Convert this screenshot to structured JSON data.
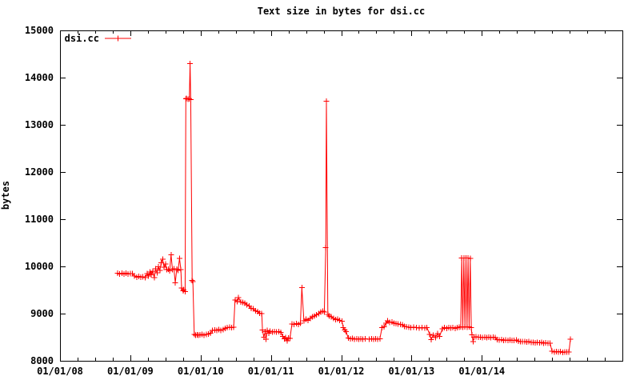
{
  "colors": {
    "series": "#ff0000",
    "text": "#000000",
    "background": "#ffffff",
    "border": "#000000"
  },
  "chart_data": {
    "type": "line",
    "title": "Text size in bytes for dsi.cc",
    "xlabel": "",
    "ylabel": "bytes",
    "legend": {
      "label": "dsi.cc",
      "position": "top-left-inside",
      "marker": "plus"
    },
    "grid": false,
    "x_axis": {
      "range": [
        2008,
        2016
      ],
      "minor_tick_step_years": 0.25,
      "majors": [
        {
          "year": 2008,
          "label": "01/01/08"
        },
        {
          "year": 2009,
          "label": "01/01/09"
        },
        {
          "year": 2010,
          "label": "01/01/10"
        },
        {
          "year": 2011,
          "label": "01/01/11"
        },
        {
          "year": 2012,
          "label": "01/01/12"
        },
        {
          "year": 2013,
          "label": "01/01/13"
        },
        {
          "year": 2014,
          "label": "01/01/14"
        }
      ]
    },
    "y_axis": {
      "range": [
        8000,
        15000
      ],
      "ticks": [
        {
          "value": 8000,
          "label": "8000"
        },
        {
          "value": 9000,
          "label": "9000"
        },
        {
          "value": 10000,
          "label": "10000"
        },
        {
          "value": 11000,
          "label": "11000"
        },
        {
          "value": 12000,
          "label": "12000"
        },
        {
          "value": 13000,
          "label": "13000"
        },
        {
          "value": 14000,
          "label": "14000"
        },
        {
          "value": 15000,
          "label": "15000"
        }
      ]
    },
    "series": [
      {
        "name": "dsi.cc",
        "color": "#ff0000",
        "marker": "plus",
        "points": [
          [
            2008.82,
            9855
          ],
          [
            2008.85,
            9840
          ],
          [
            2008.88,
            9858
          ],
          [
            2008.91,
            9842
          ],
          [
            2008.94,
            9852
          ],
          [
            2008.97,
            9838
          ],
          [
            2009.0,
            9850
          ],
          [
            2009.03,
            9844
          ],
          [
            2009.06,
            9800
          ],
          [
            2009.09,
            9775
          ],
          [
            2009.12,
            9788
          ],
          [
            2009.15,
            9768
          ],
          [
            2009.18,
            9780
          ],
          [
            2009.21,
            9765
          ],
          [
            2009.24,
            9850
          ],
          [
            2009.26,
            9795
          ],
          [
            2009.28,
            9885
          ],
          [
            2009.3,
            9820
          ],
          [
            2009.32,
            9900
          ],
          [
            2009.34,
            9760
          ],
          [
            2009.36,
            9945
          ],
          [
            2009.38,
            9865
          ],
          [
            2009.4,
            9995
          ],
          [
            2009.42,
            9915
          ],
          [
            2009.44,
            10075
          ],
          [
            2009.46,
            10150
          ],
          [
            2009.48,
            9980
          ],
          [
            2009.5,
            10050
          ],
          [
            2009.52,
            9930
          ],
          [
            2009.54,
            9940
          ],
          [
            2009.56,
            9905
          ],
          [
            2009.58,
            10250
          ],
          [
            2009.6,
            9930
          ],
          [
            2009.62,
            9950
          ],
          [
            2009.64,
            9650
          ],
          [
            2009.66,
            9938
          ],
          [
            2009.68,
            9918
          ],
          [
            2009.7,
            10170
          ],
          [
            2009.72,
            9928
          ],
          [
            2009.73,
            9545
          ],
          [
            2009.75,
            9480
          ],
          [
            2009.76,
            9505
          ],
          [
            2009.78,
            9470
          ],
          [
            2009.79,
            13550
          ],
          [
            2009.8,
            13560
          ],
          [
            2009.82,
            13540
          ],
          [
            2009.84,
            13555
          ],
          [
            2009.85,
            14300
          ],
          [
            2009.86,
            13530
          ],
          [
            2009.88,
            9700
          ],
          [
            2009.89,
            9680
          ],
          [
            2009.91,
            8560
          ],
          [
            2009.93,
            8540
          ],
          [
            2009.95,
            8555
          ],
          [
            2009.97,
            8542
          ],
          [
            2009.99,
            8552
          ],
          [
            2010.02,
            8556
          ],
          [
            2010.05,
            8540
          ],
          [
            2010.08,
            8560
          ],
          [
            2010.11,
            8572
          ],
          [
            2010.14,
            8588
          ],
          [
            2010.17,
            8640
          ],
          [
            2010.2,
            8652
          ],
          [
            2010.23,
            8642
          ],
          [
            2010.26,
            8658
          ],
          [
            2010.29,
            8648
          ],
          [
            2010.32,
            8662
          ],
          [
            2010.35,
            8688
          ],
          [
            2010.38,
            8700
          ],
          [
            2010.41,
            8712
          ],
          [
            2010.44,
            8702
          ],
          [
            2010.47,
            8715
          ],
          [
            2010.49,
            9290
          ],
          [
            2010.52,
            9255
          ],
          [
            2010.54,
            9340
          ],
          [
            2010.57,
            9250
          ],
          [
            2010.6,
            9238
          ],
          [
            2010.63,
            9222
          ],
          [
            2010.66,
            9190
          ],
          [
            2010.69,
            9160
          ],
          [
            2010.72,
            9112
          ],
          [
            2010.75,
            9098
          ],
          [
            2010.78,
            9062
          ],
          [
            2010.81,
            9040
          ],
          [
            2010.84,
            9012
          ],
          [
            2010.87,
            9000
          ],
          [
            2010.88,
            8650
          ],
          [
            2010.9,
            8500
          ],
          [
            2010.92,
            8622
          ],
          [
            2010.93,
            8460
          ],
          [
            2010.95,
            8640
          ],
          [
            2010.97,
            8582
          ],
          [
            2010.99,
            8628
          ],
          [
            2011.02,
            8612
          ],
          [
            2011.05,
            8622
          ],
          [
            2011.08,
            8608
          ],
          [
            2011.11,
            8618
          ],
          [
            2011.14,
            8605
          ],
          [
            2011.17,
            8520
          ],
          [
            2011.19,
            8468
          ],
          [
            2011.21,
            8492
          ],
          [
            2011.23,
            8420
          ],
          [
            2011.25,
            8480
          ],
          [
            2011.27,
            8472
          ],
          [
            2011.3,
            8782
          ],
          [
            2011.33,
            8768
          ],
          [
            2011.36,
            8790
          ],
          [
            2011.39,
            8775
          ],
          [
            2011.42,
            8800
          ],
          [
            2011.44,
            9550
          ],
          [
            2011.47,
            8848
          ],
          [
            2011.5,
            8878
          ],
          [
            2011.53,
            8858
          ],
          [
            2011.56,
            8900
          ],
          [
            2011.59,
            8928
          ],
          [
            2011.62,
            8948
          ],
          [
            2011.65,
            8978
          ],
          [
            2011.68,
            9002
          ],
          [
            2011.71,
            9038
          ],
          [
            2011.74,
            9052
          ],
          [
            2011.76,
            9030
          ],
          [
            2011.78,
            10400
          ],
          [
            2011.79,
            13500
          ],
          [
            2011.81,
            8985
          ],
          [
            2011.83,
            8952
          ],
          [
            2011.86,
            8930
          ],
          [
            2011.89,
            8902
          ],
          [
            2011.92,
            8872
          ],
          [
            2011.95,
            8882
          ],
          [
            2011.98,
            8852
          ],
          [
            2012.01,
            8840
          ],
          [
            2012.03,
            8700
          ],
          [
            2012.05,
            8652
          ],
          [
            2012.07,
            8618
          ],
          [
            2012.1,
            8480
          ],
          [
            2012.13,
            8465
          ],
          [
            2012.16,
            8476
          ],
          [
            2012.19,
            8460
          ],
          [
            2012.22,
            8470
          ],
          [
            2012.25,
            8456
          ],
          [
            2012.28,
            8468
          ],
          [
            2012.31,
            8458
          ],
          [
            2012.34,
            8466
          ],
          [
            2012.4,
            8458
          ],
          [
            2012.43,
            8470
          ],
          [
            2012.46,
            8455
          ],
          [
            2012.49,
            8466
          ],
          [
            2012.52,
            8458
          ],
          [
            2012.55,
            8468
          ],
          [
            2012.58,
            8700
          ],
          [
            2012.61,
            8722
          ],
          [
            2012.64,
            8800
          ],
          [
            2012.66,
            8850
          ],
          [
            2012.69,
            8812
          ],
          [
            2012.72,
            8820
          ],
          [
            2012.75,
            8800
          ],
          [
            2012.78,
            8792
          ],
          [
            2012.81,
            8782
          ],
          [
            2012.84,
            8772
          ],
          [
            2012.87,
            8762
          ],
          [
            2012.9,
            8732
          ],
          [
            2012.93,
            8722
          ],
          [
            2012.96,
            8712
          ],
          [
            2012.99,
            8702
          ],
          [
            2013.03,
            8712
          ],
          [
            2013.07,
            8700
          ],
          [
            2013.11,
            8694
          ],
          [
            2013.15,
            8702
          ],
          [
            2013.19,
            8696
          ],
          [
            2013.22,
            8704
          ],
          [
            2013.26,
            8560
          ],
          [
            2013.28,
            8450
          ],
          [
            2013.31,
            8545
          ],
          [
            2013.34,
            8495
          ],
          [
            2013.37,
            8575
          ],
          [
            2013.4,
            8520
          ],
          [
            2013.44,
            8680
          ],
          [
            2013.47,
            8700
          ],
          [
            2013.5,
            8690
          ],
          [
            2013.53,
            8705
          ],
          [
            2013.56,
            8695
          ],
          [
            2013.59,
            8700
          ],
          [
            2013.62,
            8690
          ],
          [
            2013.65,
            8700
          ],
          [
            2013.68,
            8710
          ],
          [
            2013.7,
            8720
          ],
          [
            2013.715,
            10180
          ],
          [
            2013.73,
            8715
          ],
          [
            2013.745,
            10180
          ],
          [
            2013.76,
            8720
          ],
          [
            2013.775,
            10180
          ],
          [
            2013.79,
            8715
          ],
          [
            2013.805,
            10180
          ],
          [
            2013.82,
            8720
          ],
          [
            2013.835,
            10170
          ],
          [
            2013.85,
            8700
          ],
          [
            2013.86,
            8550
          ],
          [
            2013.875,
            8410
          ],
          [
            2013.89,
            8500
          ],
          [
            2013.92,
            8510
          ],
          [
            2013.95,
            8496
          ],
          [
            2013.98,
            8504
          ],
          [
            2014.01,
            8492
          ],
          [
            2014.04,
            8502
          ],
          [
            2014.07,
            8494
          ],
          [
            2014.1,
            8504
          ],
          [
            2014.13,
            8490
          ],
          [
            2014.16,
            8498
          ],
          [
            2014.19,
            8492
          ],
          [
            2014.22,
            8448
          ],
          [
            2014.25,
            8440
          ],
          [
            2014.28,
            8446
          ],
          [
            2014.31,
            8436
          ],
          [
            2014.34,
            8442
          ],
          [
            2014.37,
            8432
          ],
          [
            2014.4,
            8440
          ],
          [
            2014.43,
            8434
          ],
          [
            2014.46,
            8430
          ],
          [
            2014.49,
            8438
          ],
          [
            2014.52,
            8414
          ],
          [
            2014.55,
            8408
          ],
          [
            2014.58,
            8404
          ],
          [
            2014.61,
            8410
          ],
          [
            2014.64,
            8400
          ],
          [
            2014.67,
            8406
          ],
          [
            2014.7,
            8394
          ],
          [
            2014.73,
            8390
          ],
          [
            2014.76,
            8384
          ],
          [
            2014.79,
            8390
          ],
          [
            2014.82,
            8380
          ],
          [
            2014.85,
            8386
          ],
          [
            2014.88,
            8376
          ],
          [
            2014.91,
            8380
          ],
          [
            2014.94,
            8370
          ],
          [
            2014.97,
            8376
          ],
          [
            2015.0,
            8200
          ],
          [
            2015.03,
            8190
          ],
          [
            2015.06,
            8196
          ],
          [
            2015.09,
            8186
          ],
          [
            2015.12,
            8192
          ],
          [
            2015.15,
            8182
          ],
          [
            2015.18,
            8190
          ],
          [
            2015.21,
            8186
          ],
          [
            2015.24,
            8190
          ],
          [
            2015.26,
            8460
          ]
        ]
      }
    ]
  }
}
